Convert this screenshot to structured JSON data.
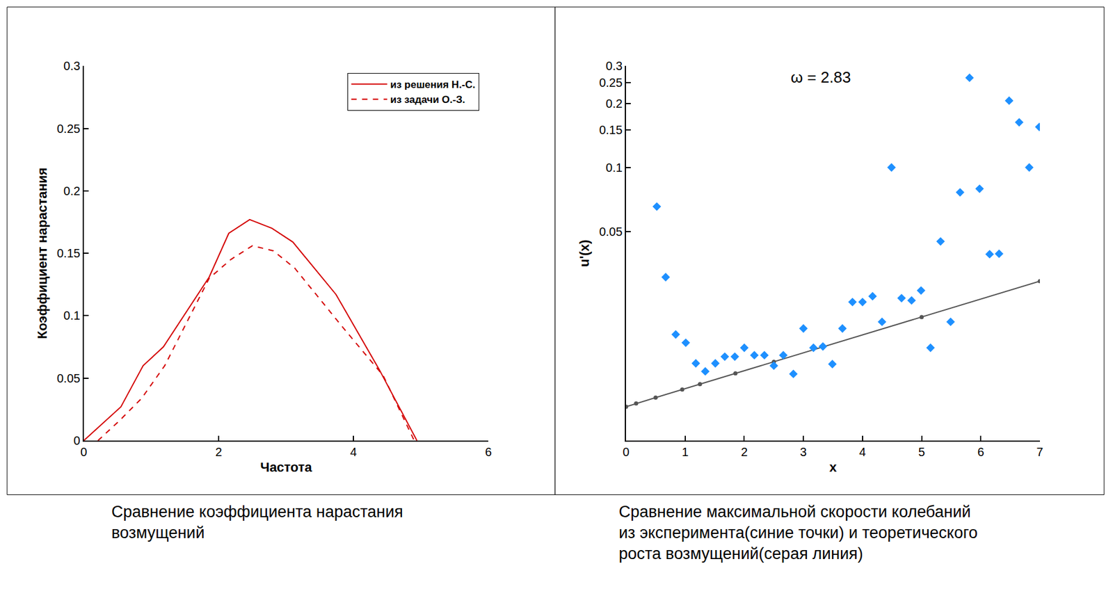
{
  "chart_data": [
    {
      "type": "line",
      "x_label": "Частота",
      "y_label": "Коэффициент нарастания",
      "caption": [
        "Сравнение коэффициента нарастания",
        "возмущений"
      ],
      "xlim": [
        0,
        6
      ],
      "xticks": [
        0,
        2,
        4,
        6
      ],
      "ylim": [
        0,
        0.3
      ],
      "yticks": [
        0,
        0.05,
        0.1,
        0.15,
        0.2,
        0.25,
        0.3
      ],
      "grid": false,
      "legend": "top right",
      "series": [
        {
          "name": "из решения Н.-С.",
          "color": "#d40000",
          "line_style": "solid",
          "x": [
            0,
            0.55,
            0.88,
            1.18,
            1.86,
            2.15,
            2.46,
            2.79,
            3.1,
            3.74,
            4.38,
            4.94
          ],
          "values": [
            0,
            0.027,
            0.06,
            0.075,
            0.131,
            0.166,
            0.177,
            0.17,
            0.159,
            0.117,
            0.057,
            0
          ]
        },
        {
          "name": "из задачи О.-З.",
          "color": "#d40000",
          "line_style": "dashed",
          "x": [
            0.21,
            0.53,
            0.86,
            1.2,
            1.86,
            2.18,
            2.5,
            2.81,
            3.13,
            3.79,
            4.44,
            4.9
          ],
          "values": [
            0,
            0.016,
            0.034,
            0.06,
            0.13,
            0.145,
            0.156,
            0.152,
            0.138,
            0.094,
            0.052,
            0
          ]
        }
      ]
    },
    {
      "type": "scatter",
      "x_label": "x",
      "y_label": "u'(x)",
      "caption": [
        "Сравнение максимальной скорости колебаний",
        "из эксперимента(синие точки) и теоретического",
        "роста возмущений(серая линия)"
      ],
      "annotations": [
        {
          "text": "ω = 2.83",
          "x": 3.3,
          "y": 0.265
        }
      ],
      "log": "y",
      "xlim": [
        0,
        7
      ],
      "xticks": [
        0,
        1,
        2,
        3,
        4,
        5,
        6,
        7
      ],
      "ylim": [
        0.0052,
        0.3
      ],
      "yticks": [
        0.05,
        0.1,
        0.15,
        0.2,
        0.25,
        0.3
      ],
      "grid": false,
      "series": [
        {
          "type": "line",
          "color": "#555555",
          "marker": "circle",
          "line_style": "solid",
          "x": [
            0,
            0.17,
            0.5,
            0.95,
            1.25,
            1.85,
            2.5,
            5,
            7
          ],
          "values": [
            0.0075,
            0.00777,
            0.00828,
            0.00904,
            0.00958,
            0.01076,
            0.0122,
            0.0198,
            0.0292
          ]
        },
        {
          "type": "scatter",
          "color": "#1e90ff",
          "marker": "diamond",
          "x": [
            0.52,
            0.67,
            0.84,
            1.01,
            1.18,
            1.34,
            1.51,
            1.67,
            1.84,
            2.0,
            2.17,
            2.34,
            2.5,
            2.66,
            2.83,
            3.0,
            3.17,
            3.33,
            3.49,
            3.66,
            3.83,
            4.0,
            4.17,
            4.33,
            4.49,
            4.66,
            4.83,
            4.99,
            5.15,
            5.32,
            5.49,
            5.65,
            5.81,
            5.98,
            6.15,
            6.31,
            6.48,
            6.65,
            6.82,
            6.99
          ],
          "values": [
            0.0655,
            0.0305,
            0.0164,
            0.015,
            0.012,
            0.011,
            0.012,
            0.0129,
            0.0129,
            0.0142,
            0.0131,
            0.0131,
            0.0117,
            0.0131,
            0.0107,
            0.0175,
            0.0142,
            0.0144,
            0.0119,
            0.0175,
            0.0233,
            0.0233,
            0.0248,
            0.0188,
            0.1,
            0.0243,
            0.0237,
            0.0264,
            0.0142,
            0.0449,
            0.0188,
            0.0764,
            0.264,
            0.0794,
            0.0391,
            0.0393,
            0.206,
            0.163,
            0.1,
            0.155
          ]
        }
      ]
    }
  ]
}
